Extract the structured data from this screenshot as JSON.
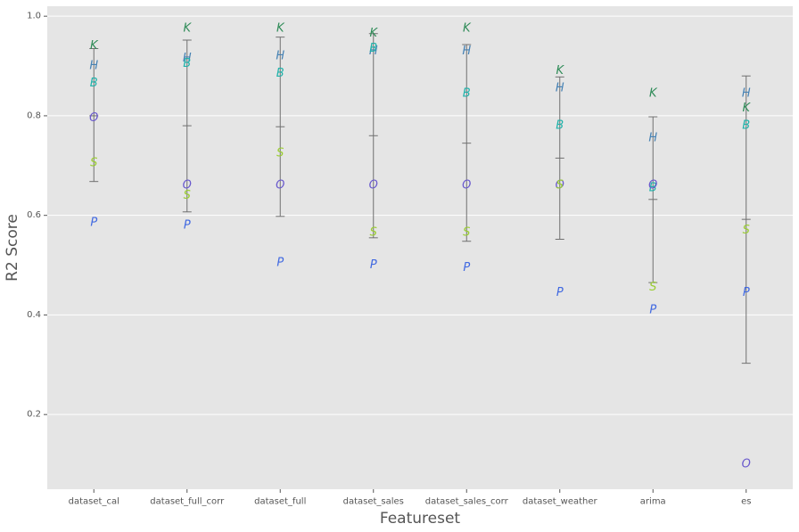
{
  "chart_data": {
    "type": "scatter",
    "xlabel": "Featureset",
    "ylabel": "R2 Score",
    "ylim": [
      0.05,
      1.02
    ],
    "yticks": [
      0.2,
      0.4,
      0.6,
      0.8,
      1.0
    ],
    "ytick_labels": [
      "0.2",
      "0.4",
      "0.6",
      "0.8",
      "1.0"
    ],
    "grid": true,
    "categories": [
      "dataset_cal",
      "dataset_full_corr",
      "dataset_full",
      "dataset_sales",
      "dataset_sales_corr",
      "dataset_weather",
      "arima",
      "es"
    ],
    "series": [
      {
        "marker": "K",
        "color": "#2e8b57",
        "values": [
          0.94,
          0.975,
          0.975,
          0.965,
          0.975,
          0.89,
          0.845,
          0.815
        ]
      },
      {
        "marker": "H",
        "color": "#4682b4",
        "values": [
          0.9,
          0.915,
          0.92,
          0.93,
          0.93,
          0.855,
          0.755,
          0.845
        ]
      },
      {
        "marker": "B",
        "color": "#20b2aa",
        "values": [
          0.865,
          0.905,
          0.885,
          0.935,
          0.845,
          0.78,
          0.655,
          0.78
        ]
      },
      {
        "marker": "O",
        "color": "#6a5acd",
        "values": [
          0.795,
          0.66,
          0.66,
          0.66,
          0.66,
          0.66,
          0.66,
          0.1
        ]
      },
      {
        "marker": "S",
        "color": "#9acd32",
        "values": [
          0.705,
          0.64,
          0.725,
          0.565,
          0.565,
          0.66,
          0.455,
          0.57
        ]
      },
      {
        "marker": "P",
        "color": "#4169e1",
        "values": [
          0.585,
          0.58,
          0.505,
          0.5,
          0.495,
          0.445,
          0.41,
          0.445
        ]
      }
    ],
    "error_bars": [
      {
        "mean": 0.8,
        "low": 0.668,
        "high": 0.935
      },
      {
        "mean": 0.78,
        "low": 0.607,
        "high": 0.952
      },
      {
        "mean": 0.778,
        "low": 0.598,
        "high": 0.958
      },
      {
        "mean": 0.76,
        "low": 0.555,
        "high": 0.965
      },
      {
        "mean": 0.745,
        "low": 0.548,
        "high": 0.943
      },
      {
        "mean": 0.715,
        "low": 0.552,
        "high": 0.878
      },
      {
        "mean": 0.632,
        "low": 0.465,
        "high": 0.798
      },
      {
        "mean": 0.592,
        "low": 0.303,
        "high": 0.88
      }
    ]
  }
}
